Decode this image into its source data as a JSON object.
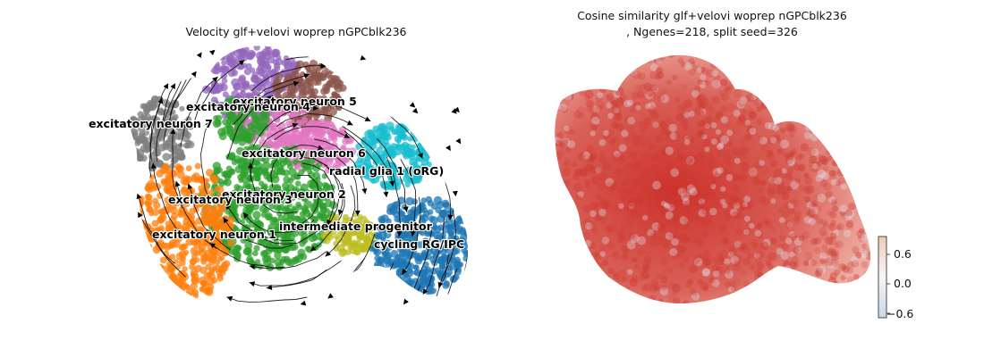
{
  "chart_data": [
    {
      "type": "scatter",
      "title": "Velocity glf+velovi woprep nGPCblk236",
      "xlabel": "",
      "ylabel": "",
      "grid": false,
      "legend": "on data",
      "overlay": "velocity streamlines",
      "clusters": [
        {
          "name": "excitatory neuron 5",
          "color": "#8c564b"
        },
        {
          "name": "excitatory neuron 4",
          "color": "#9467bd"
        },
        {
          "name": "excitatory neuron 7",
          "color": "#7f7f7f"
        },
        {
          "name": "excitatory neuron 6",
          "color": "#e377c2"
        },
        {
          "name": "radial glia 1 (oRG)",
          "color": "#17becf"
        },
        {
          "name": "excitatory neuron 2",
          "color": "#2ca02c"
        },
        {
          "name": "excitatory neuron 3",
          "color": "#ff7f0e"
        },
        {
          "name": "intermediate progenitor",
          "color": "#bcbd22"
        },
        {
          "name": "excitatory neuron 1",
          "color": "#ff7f0e"
        },
        {
          "name": "cycling RG/IPC",
          "color": "#1f77b4"
        }
      ]
    },
    {
      "type": "scatter",
      "title_line1": "Cosine similarity glf+velovi woprep nGPCblk236",
      "title_line2": ", Ngenes=218, split seed=326",
      "xlabel": "",
      "ylabel": "",
      "grid": false,
      "point_color": "#cc3a30",
      "colorbar": {
        "orientation": "vertical",
        "ticks": [
          "0.6",
          "0.0",
          "−0.6"
        ],
        "tick_values": [
          0.6,
          0.0,
          -0.6
        ],
        "range": [
          -0.75,
          0.75
        ],
        "low_color": "#c9d7ea",
        "mid_color": "#f7f7f7",
        "high_color": "#f2c8b8"
      }
    }
  ]
}
